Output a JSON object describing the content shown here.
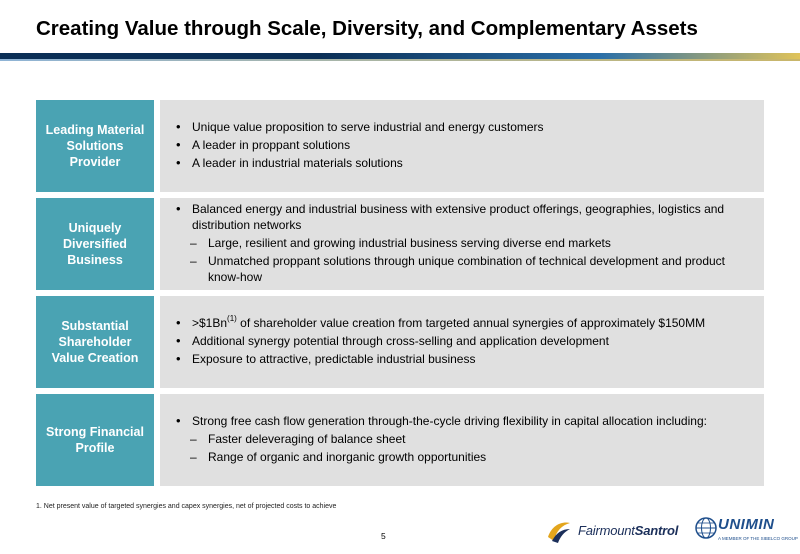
{
  "header": {
    "title": "Creating Value through Scale, Diversity, and Complementary Assets"
  },
  "rows": [
    {
      "label": "Leading Material Solutions Provider",
      "bullets": [
        "Unique value proposition to serve industrial and energy customers",
        "A leader in proppant solutions",
        "A leader in industrial materials solutions"
      ]
    },
    {
      "label": "Uniquely Diversified Business",
      "bullets": [
        "Balanced energy and industrial business with extensive product offerings, geographies, logistics and distribution networks"
      ],
      "sub_bullets": [
        "Large, resilient and growing industrial business serving diverse end markets",
        "Unmatched proppant solutions through unique combination of technical development and product know-how"
      ]
    },
    {
      "label": "Substantial Shareholder Value Creation",
      "bullets": [
        ">$1Bn",
        "(1)",
        " of shareholder value creation from targeted annual synergies of approximately $150MM",
        "Additional synergy potential through cross-selling and application development",
        "Exposure to attractive, predictable industrial business"
      ]
    },
    {
      "label": "Strong Financial Profile",
      "bullets": [
        "Strong free cash flow generation through-the-cycle driving flexibility in capital allocation including:"
      ],
      "sub_bullets": [
        "Faster deleveraging of balance sheet",
        "Range of organic and inorganic growth opportunities"
      ]
    }
  ],
  "footer": {
    "footnote": "1.  Net present value of targeted synergies and capex synergies, net of projected costs to achieve",
    "page_number": "5",
    "logo_fairmount_a": "Fairmount",
    "logo_fairmount_b": "Santrol",
    "logo_unimin": "UNIMIN",
    "logo_unimin_tag": "A MEMBER OF THE SIBELCO GROUP"
  },
  "colors": {
    "label_bg": "#4aa3b3",
    "body_bg": "#e0e0e0",
    "title_rule": "#0b2f56",
    "accent_gold": "#e0c35a"
  }
}
